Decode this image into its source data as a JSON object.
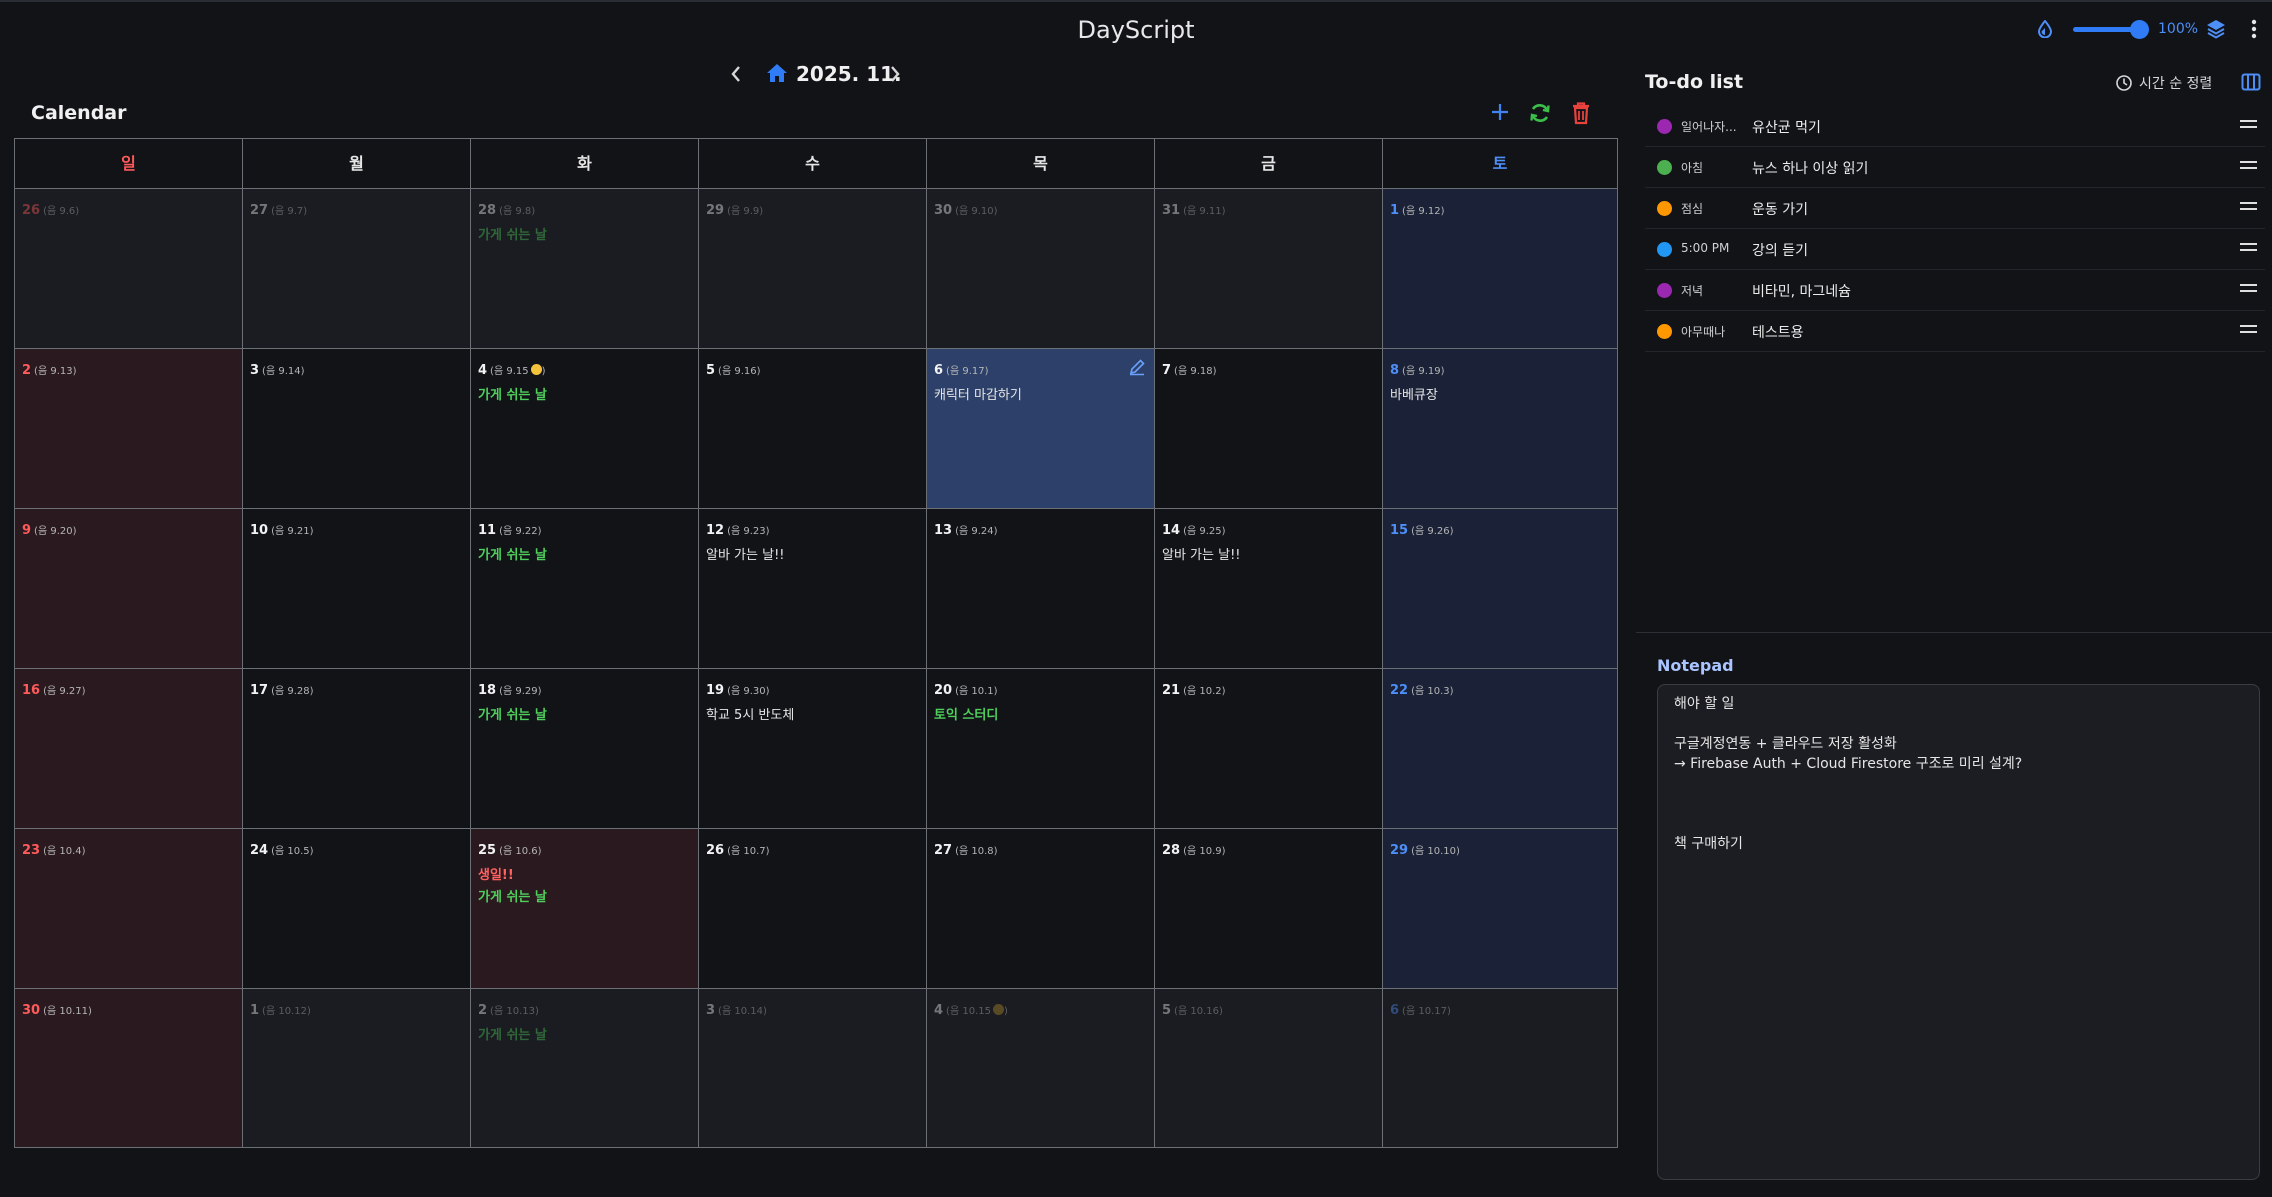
{
  "header": {
    "title": "DayScript",
    "zoom": "100%",
    "zoom_fraction": 1.0
  },
  "month_nav": {
    "label": "2025. 11."
  },
  "calendar": {
    "title": "Calendar",
    "weekdays": [
      "일",
      "월",
      "화",
      "수",
      "목",
      "금",
      "토"
    ],
    "weeks": [
      [
        {
          "day": "26",
          "lunar": "(음 9.6)",
          "other": true,
          "events": []
        },
        {
          "day": "27",
          "lunar": "(음 9.7)",
          "other": true,
          "events": []
        },
        {
          "day": "28",
          "lunar": "(음 9.8)",
          "other": true,
          "events": [
            {
              "text": "가게 쉬는 날",
              "color": "green"
            }
          ]
        },
        {
          "day": "29",
          "lunar": "(음 9.9)",
          "other": true,
          "events": []
        },
        {
          "day": "30",
          "lunar": "(음 9.10)",
          "other": true,
          "events": []
        },
        {
          "day": "31",
          "lunar": "(음 9.11)",
          "other": true,
          "events": []
        },
        {
          "day": "1",
          "lunar": "(음 9.12)",
          "other": false,
          "events": []
        }
      ],
      [
        {
          "day": "2",
          "lunar": "(음 9.13)",
          "other": false,
          "events": []
        },
        {
          "day": "3",
          "lunar": "(음 9.14)",
          "other": false,
          "events": []
        },
        {
          "day": "4",
          "lunar": "(음 9.15",
          "lunar_close": ")",
          "moon": true,
          "other": false,
          "events": [
            {
              "text": "가게 쉬는 날",
              "color": "green"
            }
          ]
        },
        {
          "day": "5",
          "lunar": "(음 9.16)",
          "other": false,
          "events": []
        },
        {
          "day": "6",
          "lunar": "(음 9.17)",
          "other": false,
          "selected": true,
          "events": [
            {
              "text": "캐릭터 마감하기",
              "color": "white"
            }
          ]
        },
        {
          "day": "7",
          "lunar": "(음 9.18)",
          "other": false,
          "events": []
        },
        {
          "day": "8",
          "lunar": "(음 9.19)",
          "other": false,
          "events": [
            {
              "text": "바베큐장",
              "color": "white"
            }
          ]
        }
      ],
      [
        {
          "day": "9",
          "lunar": "(음 9.20)",
          "other": false,
          "events": []
        },
        {
          "day": "10",
          "lunar": "(음 9.21)",
          "other": false,
          "events": []
        },
        {
          "day": "11",
          "lunar": "(음 9.22)",
          "other": false,
          "events": [
            {
              "text": "가게 쉬는 날",
              "color": "green"
            }
          ]
        },
        {
          "day": "12",
          "lunar": "(음 9.23)",
          "other": false,
          "events": [
            {
              "text": "알바 가는 날!!",
              "color": "white"
            }
          ]
        },
        {
          "day": "13",
          "lunar": "(음 9.24)",
          "other": false,
          "events": []
        },
        {
          "day": "14",
          "lunar": "(음 9.25)",
          "other": false,
          "events": [
            {
              "text": "알바 가는 날!!",
              "color": "white"
            }
          ]
        },
        {
          "day": "15",
          "lunar": "(음 9.26)",
          "other": false,
          "events": []
        }
      ],
      [
        {
          "day": "16",
          "lunar": "(음 9.27)",
          "other": false,
          "events": []
        },
        {
          "day": "17",
          "lunar": "(음 9.28)",
          "other": false,
          "events": []
        },
        {
          "day": "18",
          "lunar": "(음 9.29)",
          "other": false,
          "events": [
            {
              "text": "가게 쉬는 날",
              "color": "green"
            }
          ]
        },
        {
          "day": "19",
          "lunar": "(음 9.30)",
          "other": false,
          "events": [
            {
              "text": "학교 5시 반도체",
              "color": "white"
            }
          ]
        },
        {
          "day": "20",
          "lunar": "(음 10.1)",
          "other": false,
          "events": [
            {
              "text": "토익 스터디",
              "color": "green"
            }
          ]
        },
        {
          "day": "21",
          "lunar": "(음 10.2)",
          "other": false,
          "events": []
        },
        {
          "day": "22",
          "lunar": "(음 10.3)",
          "other": false,
          "events": []
        }
      ],
      [
        {
          "day": "23",
          "lunar": "(음 10.4)",
          "other": false,
          "events": []
        },
        {
          "day": "24",
          "lunar": "(음 10.5)",
          "other": false,
          "events": []
        },
        {
          "day": "25",
          "lunar": "(음 10.6)",
          "other": false,
          "holiday": true,
          "events": [
            {
              "text": "생일!!",
              "color": "red"
            },
            {
              "text": "가게 쉬는 날",
              "color": "green"
            }
          ]
        },
        {
          "day": "26",
          "lunar": "(음 10.7)",
          "other": false,
          "events": []
        },
        {
          "day": "27",
          "lunar": "(음 10.8)",
          "other": false,
          "events": []
        },
        {
          "day": "28",
          "lunar": "(음 10.9)",
          "other": false,
          "events": []
        },
        {
          "day": "29",
          "lunar": "(음 10.10)",
          "other": false,
          "events": []
        }
      ],
      [
        {
          "day": "30",
          "lunar": "(음 10.11)",
          "other": false,
          "events": []
        },
        {
          "day": "1",
          "lunar": "(음 10.12)",
          "other": true,
          "events": []
        },
        {
          "day": "2",
          "lunar": "(음 10.13)",
          "other": true,
          "events": [
            {
              "text": "가게 쉬는 날",
              "color": "green"
            }
          ]
        },
        {
          "day": "3",
          "lunar": "(음 10.14)",
          "other": true,
          "events": []
        },
        {
          "day": "4",
          "lunar": "(음 10.15",
          "lunar_close": ")",
          "moon": true,
          "other": true,
          "events": []
        },
        {
          "day": "5",
          "lunar": "(음 10.16)",
          "other": true,
          "events": []
        },
        {
          "day": "6",
          "lunar": "(음 10.17)",
          "other": true,
          "events": []
        }
      ]
    ]
  },
  "todo": {
    "title": "To-do list",
    "sort_label": "시간 순 정렬",
    "items": [
      {
        "time": "일어나자...",
        "text": "유산균 먹기",
        "color": "#9c27b0"
      },
      {
        "time": "아침",
        "text": "뉴스 하나 이상 읽기",
        "color": "#4caf50"
      },
      {
        "time": "점심",
        "text": "운동 가기",
        "color": "#ff9800"
      },
      {
        "time": "5:00 PM",
        "text": "강의 듣기",
        "color": "#2196f3"
      },
      {
        "time": "저녁",
        "text": "비타민, 마그네슘",
        "color": "#9c27b0"
      },
      {
        "time": "아무때나",
        "text": "테스트용",
        "color": "#ff9800"
      }
    ]
  },
  "notepad": {
    "title": "Notepad",
    "content": "해야 할 일\n\n구글계정연동 + 클라우드 저장 활성화\n→ Firebase Auth + Cloud Firestore 구조로 미리 설계?\n\n\n\n책 구매하기"
  },
  "colors": {
    "accent": "#2f7cf6",
    "sunday": "#ff5a5a",
    "saturday": "#4d8ef7",
    "green": "#4fcf5c"
  }
}
